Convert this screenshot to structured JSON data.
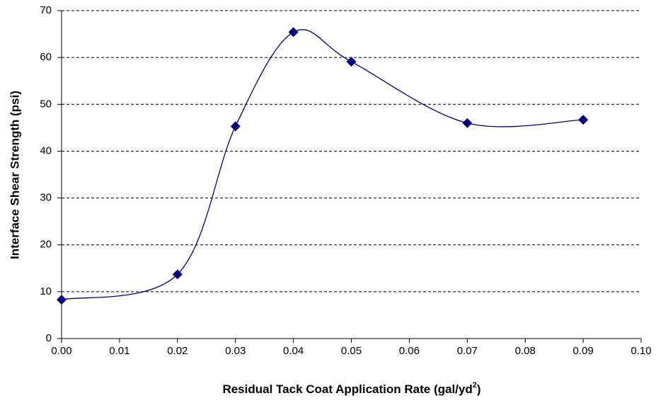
{
  "chart_data": {
    "type": "line",
    "ylabel": "Interface Shear Strength (psi)",
    "xlabel": {
      "text": "Residual Tack Coat Application Rate (gal/yd",
      "superscript": "2",
      "suffix": ")"
    },
    "x": [
      0,
      0.02,
      0.03,
      0.04,
      0.05,
      0.07,
      0.09
    ],
    "values": [
      8.3,
      13.7,
      45.3,
      65.4,
      59.1,
      46.0,
      46.7
    ],
    "color": "#000080",
    "smooth": true,
    "xlim": [
      0,
      0.1
    ],
    "xticks": [
      {
        "value": 0,
        "label": "0.00"
      },
      0.01,
      0.02,
      0.03,
      0.04,
      0.05,
      0.06,
      0.07,
      0.08,
      0.09,
      {
        "value": 0.1,
        "label": "0.10"
      }
    ],
    "ylim": [
      0,
      70
    ],
    "yticks": [
      0,
      10,
      20,
      30,
      40,
      50,
      60,
      70
    ],
    "grid": true
  }
}
